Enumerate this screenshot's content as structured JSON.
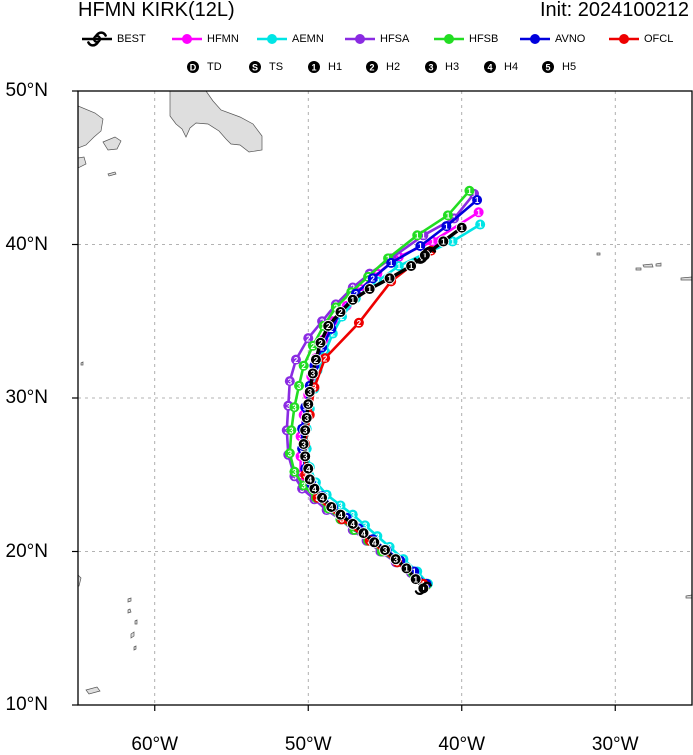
{
  "title": {
    "left": "HFMN KIRK(12L)",
    "right": "Init: 2024100212"
  },
  "legend": {
    "models": [
      {
        "label": "BEST",
        "color": "#000000",
        "icon": "hurricane-symbol-icon"
      },
      {
        "label": "HFMN",
        "color": "#ff00ff",
        "icon": "dot-line-icon"
      },
      {
        "label": "AEMN",
        "color": "#00e5e5",
        "icon": "dot-line-icon"
      },
      {
        "label": "HFSA",
        "color": "#8a2be2",
        "icon": "dot-line-icon"
      },
      {
        "label": "HFSB",
        "color": "#22dd22",
        "icon": "dot-line-icon"
      },
      {
        "label": "AVNO",
        "color": "#0000dd",
        "icon": "dot-line-icon"
      },
      {
        "label": "OFCL",
        "color": "#ee0000",
        "icon": "dot-line-icon"
      }
    ],
    "intensity": [
      {
        "symbol": "D",
        "label": "TD"
      },
      {
        "symbol": "S",
        "label": "TS"
      },
      {
        "symbol": "1",
        "label": "H1"
      },
      {
        "symbol": "2",
        "label": "H2"
      },
      {
        "symbol": "3",
        "label": "H3"
      },
      {
        "symbol": "4",
        "label": "H4"
      },
      {
        "symbol": "5",
        "label": "H5"
      }
    ]
  },
  "axes": {
    "lat_labels": [
      "50°N",
      "40°N",
      "30°N",
      "20°N",
      "10°N"
    ],
    "lon_labels": [
      "60°W",
      "50°W",
      "40°W",
      "30°W"
    ]
  },
  "chart_data": {
    "type": "map-track",
    "lon_range": [
      -65,
      -25
    ],
    "lat_range": [
      10,
      50
    ],
    "grid": true,
    "gridlines_lon": [
      -60,
      -50,
      -40,
      -30
    ],
    "gridlines_lat": [
      20,
      30,
      40
    ],
    "series": [
      {
        "name": "HFMN",
        "color": "#ff00ff",
        "points": [
          [
            -42.3,
            17.8,
            "1"
          ],
          [
            -43.2,
            18.6,
            "1"
          ],
          [
            -44.2,
            19.3,
            "3"
          ],
          [
            -45.1,
            20.0,
            "3"
          ],
          [
            -46.0,
            20.7,
            "3"
          ],
          [
            -46.9,
            21.4,
            "3"
          ],
          [
            -47.8,
            22.1,
            "3"
          ],
          [
            -48.6,
            22.8,
            "3"
          ],
          [
            -49.4,
            23.5,
            "3"
          ],
          [
            -50.1,
            24.2,
            "3"
          ],
          [
            -50.5,
            25.0,
            "3"
          ],
          [
            -50.5,
            26.2,
            "3"
          ],
          [
            -50.5,
            27.5,
            "3"
          ],
          [
            -50.3,
            28.9,
            "3"
          ],
          [
            -50.0,
            30.2,
            "3"
          ],
          [
            -49.8,
            31.4,
            "3"
          ],
          [
            -49.5,
            32.6,
            "2"
          ],
          [
            -49.0,
            33.8,
            "2"
          ],
          [
            -48.4,
            35.0,
            "2"
          ],
          [
            -47.5,
            36.0,
            "2"
          ],
          [
            -46.6,
            37.1,
            "2"
          ],
          [
            -45.5,
            38.1,
            "2"
          ],
          [
            -44.1,
            39.2,
            "1"
          ],
          [
            -41.9,
            40.2,
            "1"
          ],
          [
            -38.9,
            42.1,
            "1"
          ]
        ]
      },
      {
        "name": "AEMN",
        "color": "#00e5e5",
        "points": [
          [
            -42.2,
            17.9,
            "1"
          ],
          [
            -42.9,
            18.7,
            "1"
          ],
          [
            -43.8,
            19.5,
            "3"
          ],
          [
            -44.7,
            20.3,
            "3"
          ],
          [
            -45.5,
            21.0,
            "3"
          ],
          [
            -46.3,
            21.7,
            "3"
          ],
          [
            -47.1,
            22.4,
            "3"
          ],
          [
            -47.9,
            23.0,
            "3"
          ],
          [
            -48.8,
            23.7,
            "3"
          ],
          [
            -49.5,
            24.5,
            "3"
          ],
          [
            -49.9,
            25.5,
            "3"
          ],
          [
            -50.1,
            26.7,
            "3"
          ],
          [
            -50.1,
            28.0,
            "3"
          ],
          [
            -49.9,
            29.3,
            "3"
          ],
          [
            -49.6,
            30.6,
            "3"
          ],
          [
            -49.4,
            31.8,
            "3"
          ],
          [
            -48.9,
            33.0,
            "2"
          ],
          [
            -48.4,
            34.2,
            "2"
          ],
          [
            -47.8,
            35.3,
            "2"
          ],
          [
            -46.9,
            36.5,
            "2"
          ],
          [
            -45.5,
            37.6,
            "2"
          ],
          [
            -44.1,
            38.6,
            "1"
          ],
          [
            -42.4,
            39.4,
            "1"
          ],
          [
            -40.6,
            40.2,
            "1"
          ],
          [
            -38.8,
            41.3,
            "1"
          ]
        ]
      },
      {
        "name": "HFSA",
        "color": "#8a2be2",
        "points": [
          [
            -42.4,
            17.8,
            "1"
          ],
          [
            -43.3,
            18.6,
            "1"
          ],
          [
            -44.3,
            19.3,
            "3"
          ],
          [
            -45.3,
            20.0,
            "3"
          ],
          [
            -46.2,
            20.7,
            "3"
          ],
          [
            -47.1,
            21.4,
            "3"
          ],
          [
            -47.9,
            22.1,
            "3"
          ],
          [
            -48.8,
            22.7,
            "3"
          ],
          [
            -49.6,
            23.4,
            "3"
          ],
          [
            -50.4,
            24.1,
            "3"
          ],
          [
            -50.9,
            24.9,
            "3"
          ],
          [
            -51.3,
            26.3,
            "3"
          ],
          [
            -51.4,
            27.9,
            "3"
          ],
          [
            -51.3,
            29.5,
            "3"
          ],
          [
            -51.2,
            31.1,
            "3"
          ],
          [
            -50.8,
            32.5,
            "2"
          ],
          [
            -50.0,
            33.9,
            "2"
          ],
          [
            -49.1,
            35.0,
            "2"
          ],
          [
            -48.2,
            36.1,
            "2"
          ],
          [
            -47.1,
            37.2,
            "2"
          ],
          [
            -46.0,
            38.1,
            "2"
          ],
          [
            -44.6,
            39.1,
            "1"
          ],
          [
            -42.5,
            40.6,
            "1"
          ],
          [
            -40.5,
            41.7,
            "1"
          ],
          [
            -39.2,
            43.3,
            "1"
          ]
        ]
      },
      {
        "name": "HFSB",
        "color": "#22dd22",
        "points": [
          [
            -42.3,
            17.8,
            "1"
          ],
          [
            -43.2,
            18.6,
            "1"
          ],
          [
            -44.2,
            19.3,
            "3"
          ],
          [
            -45.2,
            20.0,
            "3"
          ],
          [
            -46.1,
            20.7,
            "3"
          ],
          [
            -47.0,
            21.4,
            "3"
          ],
          [
            -47.9,
            22.1,
            "3"
          ],
          [
            -48.7,
            22.8,
            "3"
          ],
          [
            -49.5,
            23.5,
            "3"
          ],
          [
            -50.3,
            24.3,
            "3"
          ],
          [
            -50.9,
            25.2,
            "3"
          ],
          [
            -51.2,
            26.4,
            "3"
          ],
          [
            -51.1,
            27.9,
            "3"
          ],
          [
            -50.9,
            29.4,
            "3"
          ],
          [
            -50.6,
            30.8,
            "3"
          ],
          [
            -50.3,
            32.1,
            "2"
          ],
          [
            -49.7,
            33.4,
            "2"
          ],
          [
            -49.0,
            34.7,
            "2"
          ],
          [
            -48.2,
            35.9,
            "2"
          ],
          [
            -47.2,
            36.9,
            "2"
          ],
          [
            -46.1,
            37.9,
            "2"
          ],
          [
            -44.8,
            39.1,
            "1"
          ],
          [
            -42.9,
            40.6,
            "1"
          ],
          [
            -40.9,
            41.9,
            "1"
          ],
          [
            -39.5,
            43.5,
            "1"
          ]
        ]
      },
      {
        "name": "AVNO",
        "color": "#0000dd",
        "points": [
          [
            -42.3,
            17.9,
            "1"
          ],
          [
            -43.1,
            18.7,
            "1"
          ],
          [
            -44.0,
            19.4,
            "3"
          ],
          [
            -44.9,
            20.1,
            "3"
          ],
          [
            -45.8,
            20.8,
            "3"
          ],
          [
            -46.7,
            21.5,
            "3"
          ],
          [
            -47.5,
            22.2,
            "3"
          ],
          [
            -48.4,
            22.9,
            "3"
          ],
          [
            -49.1,
            23.6,
            "3"
          ],
          [
            -49.8,
            24.4,
            "3"
          ],
          [
            -50.2,
            25.4,
            "3"
          ],
          [
            -50.4,
            26.7,
            "3"
          ],
          [
            -50.4,
            28.0,
            "3"
          ],
          [
            -50.2,
            29.4,
            "3"
          ],
          [
            -49.9,
            30.8,
            "3"
          ],
          [
            -49.6,
            32.1,
            "2"
          ],
          [
            -49.1,
            33.3,
            "2"
          ],
          [
            -48.5,
            34.5,
            "2"
          ],
          [
            -47.9,
            35.6,
            "2"
          ],
          [
            -46.9,
            36.8,
            "2"
          ],
          [
            -45.8,
            37.8,
            "2"
          ],
          [
            -44.6,
            38.8,
            "1"
          ],
          [
            -42.7,
            39.9,
            "1"
          ],
          [
            -41.0,
            41.2,
            "1"
          ],
          [
            -39.0,
            42.9,
            "1"
          ]
        ]
      },
      {
        "name": "OFCL",
        "color": "#ee0000",
        "points": [
          [
            -42.5,
            17.9,
            "1"
          ],
          [
            -44.2,
            19.3,
            "3"
          ],
          [
            -46.0,
            20.7,
            "3"
          ],
          [
            -47.8,
            22.1,
            "3"
          ],
          [
            -49.4,
            23.5,
            "3"
          ],
          [
            -50.2,
            25.0,
            "3"
          ],
          [
            -50.2,
            27.0,
            "3"
          ],
          [
            -49.9,
            28.9,
            "3"
          ],
          [
            -49.6,
            30.7,
            "3"
          ],
          [
            -48.9,
            32.6,
            "2"
          ],
          [
            -46.7,
            34.9,
            "2"
          ],
          [
            -44.6,
            37.6,
            "1"
          ],
          [
            -42.0,
            39.6,
            "1"
          ]
        ]
      },
      {
        "name": "BEST",
        "color": "#000000",
        "points": [
          [
            -42.5,
            17.6,
            "1"
          ],
          [
            -43.0,
            18.2,
            "1"
          ],
          [
            -43.6,
            18.9,
            "1"
          ],
          [
            -44.3,
            19.5,
            "3"
          ],
          [
            -45.0,
            20.1,
            "3"
          ],
          [
            -45.7,
            20.6,
            "4"
          ],
          [
            -46.4,
            21.2,
            "4"
          ],
          [
            -47.1,
            21.8,
            "4"
          ],
          [
            -47.9,
            22.4,
            "4"
          ],
          [
            -48.5,
            22.9,
            "4"
          ],
          [
            -49.1,
            23.5,
            "4"
          ],
          [
            -49.6,
            24.1,
            "4"
          ],
          [
            -49.9,
            24.7,
            "4"
          ],
          [
            -50.0,
            25.4,
            "4"
          ],
          [
            -50.2,
            26.2,
            "3"
          ],
          [
            -50.3,
            27.0,
            "3"
          ],
          [
            -50.2,
            27.9,
            "3"
          ],
          [
            -50.1,
            28.7,
            "3"
          ],
          [
            -50.0,
            29.6,
            "3"
          ],
          [
            -49.9,
            30.4,
            "3"
          ],
          [
            -49.7,
            31.6,
            "3"
          ],
          [
            -49.5,
            32.5,
            "2"
          ],
          [
            -49.2,
            33.6,
            "2"
          ],
          [
            -48.7,
            34.7,
            "2"
          ],
          [
            -47.9,
            35.6,
            "2"
          ],
          [
            -47.1,
            36.4,
            "1"
          ],
          [
            -46.0,
            37.1,
            "1"
          ],
          [
            -44.7,
            37.8,
            "1"
          ],
          [
            -43.3,
            38.6,
            "1"
          ],
          [
            -42.4,
            39.3,
            "1"
          ],
          [
            -41.2,
            40.2,
            "1"
          ],
          [
            -40.0,
            41.1,
            "1"
          ]
        ]
      }
    ]
  }
}
